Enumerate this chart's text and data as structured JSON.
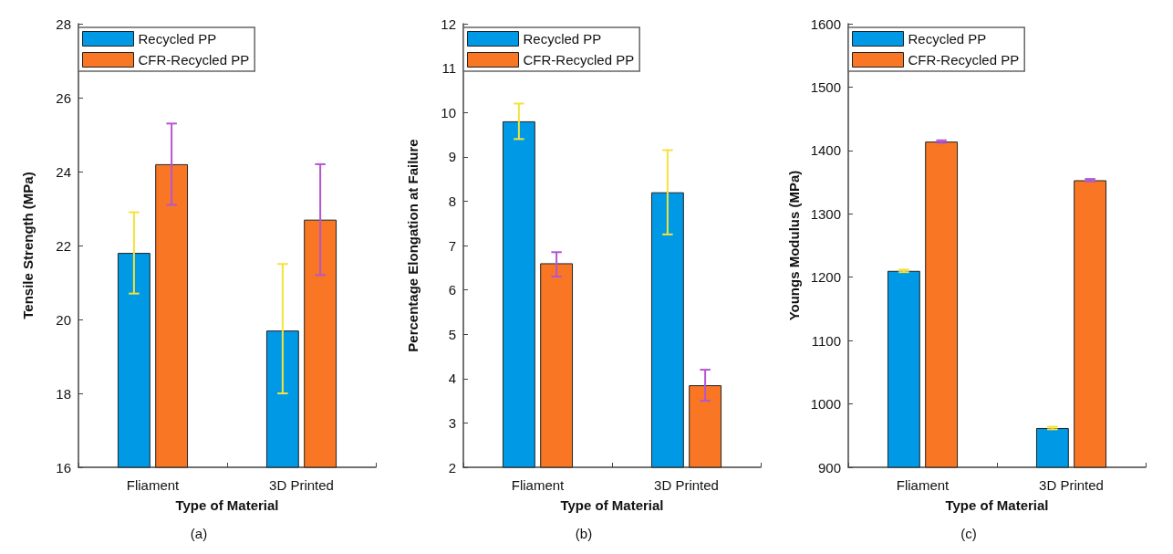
{
  "chart_data": [
    {
      "type": "bar",
      "categories": [
        "Fliament",
        "3D Printed"
      ],
      "xlabel": "Type of Material",
      "ylabel": "Tensile Strength (MPa)",
      "ylim": [
        16,
        28
      ],
      "yticks": [
        16,
        18,
        20,
        22,
        24,
        26,
        28
      ],
      "legend": "top left",
      "grid": false,
      "annotations": [
        "(a)"
      ],
      "series": [
        {
          "name": "Recycled PP",
          "color": "#0099e6",
          "values": [
            21.8,
            19.7
          ],
          "errors": [
            [
              20.7,
              22.9
            ],
            [
              18.0,
              21.5
            ]
          ]
        },
        {
          "name": "CFR-Recycled PP",
          "color": "#f97724",
          "values": [
            24.2,
            22.7
          ],
          "errors": [
            [
              23.1,
              25.3
            ],
            [
              21.2,
              24.2
            ]
          ]
        }
      ]
    },
    {
      "type": "bar",
      "categories": [
        "Fliament",
        "3D Printed"
      ],
      "xlabel": "Type of Material",
      "ylabel": "Percentage Elongation at Failure",
      "ylim": [
        2,
        12
      ],
      "yticks": [
        2,
        3,
        4,
        5,
        6,
        7,
        8,
        9,
        10,
        11,
        12
      ],
      "legend": "top left",
      "grid": false,
      "annotations": [
        "(b)"
      ],
      "series": [
        {
          "name": "Recycled PP",
          "color": "#0099e6",
          "values": [
            9.8,
            8.2
          ],
          "errors": [
            [
              9.4,
              10.2
            ],
            [
              7.25,
              9.15
            ]
          ]
        },
        {
          "name": "CFR-Recycled PP",
          "color": "#f97724",
          "values": [
            6.6,
            3.85
          ],
          "errors": [
            [
              6.3,
              6.85
            ],
            [
              3.5,
              4.2
            ]
          ]
        }
      ]
    },
    {
      "type": "bar",
      "categories": [
        "Fliament",
        "3D Printed"
      ],
      "xlabel": "Type of Material",
      "ylabel": "Youngs Modulus (MPa)",
      "ylim": [
        900,
        1600
      ],
      "yticks": [
        900,
        1000,
        1100,
        1200,
        1300,
        1400,
        1500,
        1600
      ],
      "legend": "top left",
      "grid": false,
      "annotations": [
        "(c)"
      ],
      "series": [
        {
          "name": "Recycled PP",
          "color": "#0099e6",
          "values": [
            1210,
            962
          ],
          "errors": [
            2,
            2
          ]
        },
        {
          "name": "CFR-Recycled PP",
          "color": "#f97724",
          "values": [
            1414,
            1353
          ],
          "errors": [
            2,
            2
          ]
        }
      ]
    }
  ]
}
